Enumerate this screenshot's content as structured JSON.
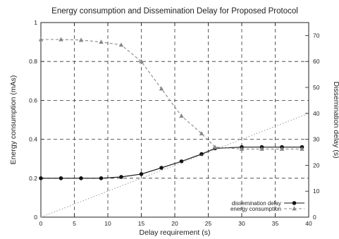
{
  "chart_data": {
    "type": "line",
    "title": "Energy consumption and Dissemination Delay for Proposed Protocol",
    "xlabel": "Delay requirement (s)",
    "ylabel_left": "Energy consumption (mAs)",
    "ylabel_right": "Dissemination delay (s)",
    "xlim": [
      0,
      40
    ],
    "ylim_left": [
      0,
      1
    ],
    "ylim_right": [
      0,
      75
    ],
    "x_ticks": [
      "0",
      "5",
      "10",
      "15",
      "20",
      "25",
      "30",
      "35",
      "40"
    ],
    "y_left_ticks": [
      "0",
      "0.2",
      "0.4",
      "0.6",
      "0.8",
      "1"
    ],
    "y_right_ticks": [
      "0",
      "10",
      "20",
      "30",
      "40",
      "50",
      "60",
      "70"
    ],
    "grid": true,
    "legend_position": "bottom-right",
    "series": [
      {
        "name": "dissemination delay",
        "axis": "right",
        "marker": "circle",
        "color": "#111111",
        "x": [
          0,
          3,
          6,
          9,
          12,
          15,
          18,
          21,
          24,
          26,
          30,
          33,
          36,
          39
        ],
        "y": [
          15,
          15,
          15,
          15,
          15.5,
          16.6,
          19,
          21.5,
          24.3,
          26.5,
          27,
          27,
          27,
          27
        ]
      },
      {
        "name": "energy consumption",
        "axis": "left",
        "marker": "triangle",
        "color": "#888888",
        "x": [
          0,
          3,
          6,
          9,
          12,
          15,
          18,
          21,
          24,
          26,
          30,
          33,
          36,
          39
        ],
        "y": [
          0.913,
          0.913,
          0.91,
          0.9,
          0.885,
          0.8,
          0.66,
          0.52,
          0.43,
          0.36,
          0.35,
          0.35,
          0.35,
          0.35
        ]
      },
      {
        "name": "",
        "axis": "right",
        "marker": "none",
        "color": "#999999",
        "style": "dotted",
        "x": [
          0,
          40
        ],
        "y": [
          0,
          40
        ]
      }
    ]
  }
}
